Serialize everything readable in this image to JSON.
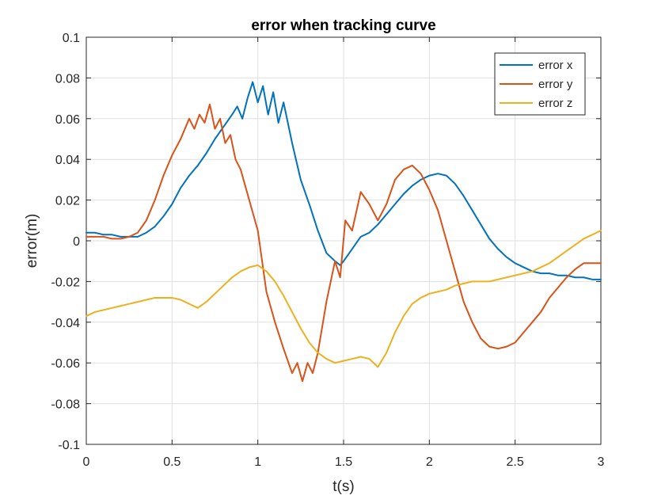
{
  "chart_data": {
    "type": "line",
    "title": "error when tracking curve",
    "xlabel": "t(s)",
    "ylabel": "error(m)",
    "xlim": [
      0,
      3
    ],
    "ylim": [
      -0.1,
      0.1
    ],
    "xticks": [
      0,
      0.5,
      1,
      1.5,
      2,
      2.5,
      3
    ],
    "xtick_labels": [
      "0",
      "0.5",
      "1",
      "1.5",
      "2",
      "2.5",
      "3"
    ],
    "yticks": [
      -0.1,
      -0.08,
      -0.06,
      -0.04,
      -0.02,
      0,
      0.02,
      0.04,
      0.06,
      0.08,
      0.1
    ],
    "ytick_labels": [
      "-0.1",
      "-0.08",
      "-0.06",
      "-0.04",
      "-0.02",
      "0",
      "0.02",
      "0.04",
      "0.06",
      "0.08",
      "0.1"
    ],
    "grid": true,
    "legend_position": "top-right",
    "series": [
      {
        "name": "error x",
        "color": "#0072BD",
        "x": [
          0,
          0.05,
          0.1,
          0.15,
          0.2,
          0.25,
          0.3,
          0.35,
          0.4,
          0.45,
          0.5,
          0.55,
          0.6,
          0.65,
          0.7,
          0.75,
          0.8,
          0.85,
          0.88,
          0.91,
          0.94,
          0.97,
          1.0,
          1.03,
          1.06,
          1.09,
          1.12,
          1.15,
          1.2,
          1.25,
          1.3,
          1.35,
          1.4,
          1.45,
          1.48,
          1.5,
          1.55,
          1.6,
          1.65,
          1.7,
          1.75,
          1.8,
          1.85,
          1.9,
          1.95,
          2.0,
          2.05,
          2.1,
          2.15,
          2.2,
          2.25,
          2.3,
          2.35,
          2.4,
          2.45,
          2.5,
          2.55,
          2.6,
          2.65,
          2.7,
          2.75,
          2.8,
          2.85,
          2.9,
          2.95,
          3.0
        ],
        "y": [
          0.004,
          0.004,
          0.003,
          0.003,
          0.002,
          0.002,
          0.002,
          0.004,
          0.007,
          0.012,
          0.018,
          0.026,
          0.032,
          0.037,
          0.043,
          0.05,
          0.056,
          0.062,
          0.066,
          0.06,
          0.07,
          0.078,
          0.068,
          0.076,
          0.062,
          0.073,
          0.058,
          0.068,
          0.048,
          0.03,
          0.018,
          0.005,
          -0.006,
          -0.01,
          -0.012,
          -0.01,
          -0.004,
          0.002,
          0.004,
          0.008,
          0.013,
          0.018,
          0.023,
          0.027,
          0.03,
          0.032,
          0.033,
          0.032,
          0.028,
          0.022,
          0.015,
          0.008,
          0.001,
          -0.004,
          -0.008,
          -0.011,
          -0.013,
          -0.015,
          -0.016,
          -0.016,
          -0.017,
          -0.017,
          -0.018,
          -0.018,
          -0.019,
          -0.019
        ]
      },
      {
        "name": "error y",
        "color": "#D95319",
        "x": [
          0,
          0.05,
          0.1,
          0.15,
          0.2,
          0.25,
          0.3,
          0.35,
          0.4,
          0.45,
          0.5,
          0.55,
          0.6,
          0.63,
          0.66,
          0.69,
          0.72,
          0.75,
          0.78,
          0.81,
          0.84,
          0.87,
          0.9,
          0.95,
          1.0,
          1.05,
          1.1,
          1.15,
          1.2,
          1.23,
          1.26,
          1.29,
          1.32,
          1.35,
          1.4,
          1.45,
          1.48,
          1.51,
          1.55,
          1.6,
          1.65,
          1.7,
          1.75,
          1.8,
          1.85,
          1.9,
          1.95,
          2.0,
          2.05,
          2.1,
          2.15,
          2.2,
          2.25,
          2.3,
          2.35,
          2.4,
          2.45,
          2.5,
          2.55,
          2.6,
          2.65,
          2.7,
          2.75,
          2.8,
          2.85,
          2.9,
          2.95,
          3.0
        ],
        "y": [
          0.002,
          0.002,
          0.002,
          0.001,
          0.001,
          0.002,
          0.004,
          0.01,
          0.02,
          0.032,
          0.042,
          0.05,
          0.06,
          0.055,
          0.062,
          0.058,
          0.067,
          0.055,
          0.06,
          0.048,
          0.052,
          0.04,
          0.035,
          0.02,
          0.005,
          -0.025,
          -0.04,
          -0.053,
          -0.065,
          -0.06,
          -0.069,
          -0.06,
          -0.065,
          -0.055,
          -0.03,
          -0.01,
          -0.018,
          0.01,
          0.005,
          0.024,
          0.018,
          0.01,
          0.018,
          0.03,
          0.035,
          0.037,
          0.033,
          0.025,
          0.015,
          0.0,
          -0.015,
          -0.03,
          -0.04,
          -0.048,
          -0.052,
          -0.053,
          -0.052,
          -0.05,
          -0.045,
          -0.04,
          -0.035,
          -0.028,
          -0.023,
          -0.018,
          -0.014,
          -0.011,
          -0.011,
          -0.011
        ]
      },
      {
        "name": "error z",
        "color": "#EDB120",
        "x": [
          0,
          0.05,
          0.1,
          0.15,
          0.2,
          0.25,
          0.3,
          0.35,
          0.4,
          0.45,
          0.5,
          0.55,
          0.6,
          0.65,
          0.7,
          0.75,
          0.8,
          0.85,
          0.9,
          0.95,
          1.0,
          1.05,
          1.1,
          1.15,
          1.2,
          1.25,
          1.3,
          1.35,
          1.4,
          1.45,
          1.5,
          1.55,
          1.6,
          1.65,
          1.7,
          1.75,
          1.8,
          1.85,
          1.9,
          1.95,
          2.0,
          2.05,
          2.1,
          2.15,
          2.2,
          2.25,
          2.3,
          2.35,
          2.4,
          2.45,
          2.5,
          2.55,
          2.6,
          2.65,
          2.7,
          2.75,
          2.8,
          2.85,
          2.9,
          2.95,
          3.0
        ],
        "y": [
          -0.037,
          -0.035,
          -0.034,
          -0.033,
          -0.032,
          -0.031,
          -0.03,
          -0.029,
          -0.028,
          -0.028,
          -0.028,
          -0.029,
          -0.031,
          -0.033,
          -0.03,
          -0.026,
          -0.022,
          -0.018,
          -0.015,
          -0.013,
          -0.012,
          -0.015,
          -0.02,
          -0.027,
          -0.035,
          -0.043,
          -0.05,
          -0.055,
          -0.058,
          -0.06,
          -0.059,
          -0.058,
          -0.057,
          -0.058,
          -0.062,
          -0.055,
          -0.045,
          -0.037,
          -0.031,
          -0.028,
          -0.026,
          -0.025,
          -0.024,
          -0.022,
          -0.021,
          -0.02,
          -0.02,
          -0.02,
          -0.019,
          -0.018,
          -0.017,
          -0.016,
          -0.015,
          -0.013,
          -0.011,
          -0.008,
          -0.005,
          -0.002,
          0.001,
          0.003,
          0.005
        ]
      }
    ]
  }
}
